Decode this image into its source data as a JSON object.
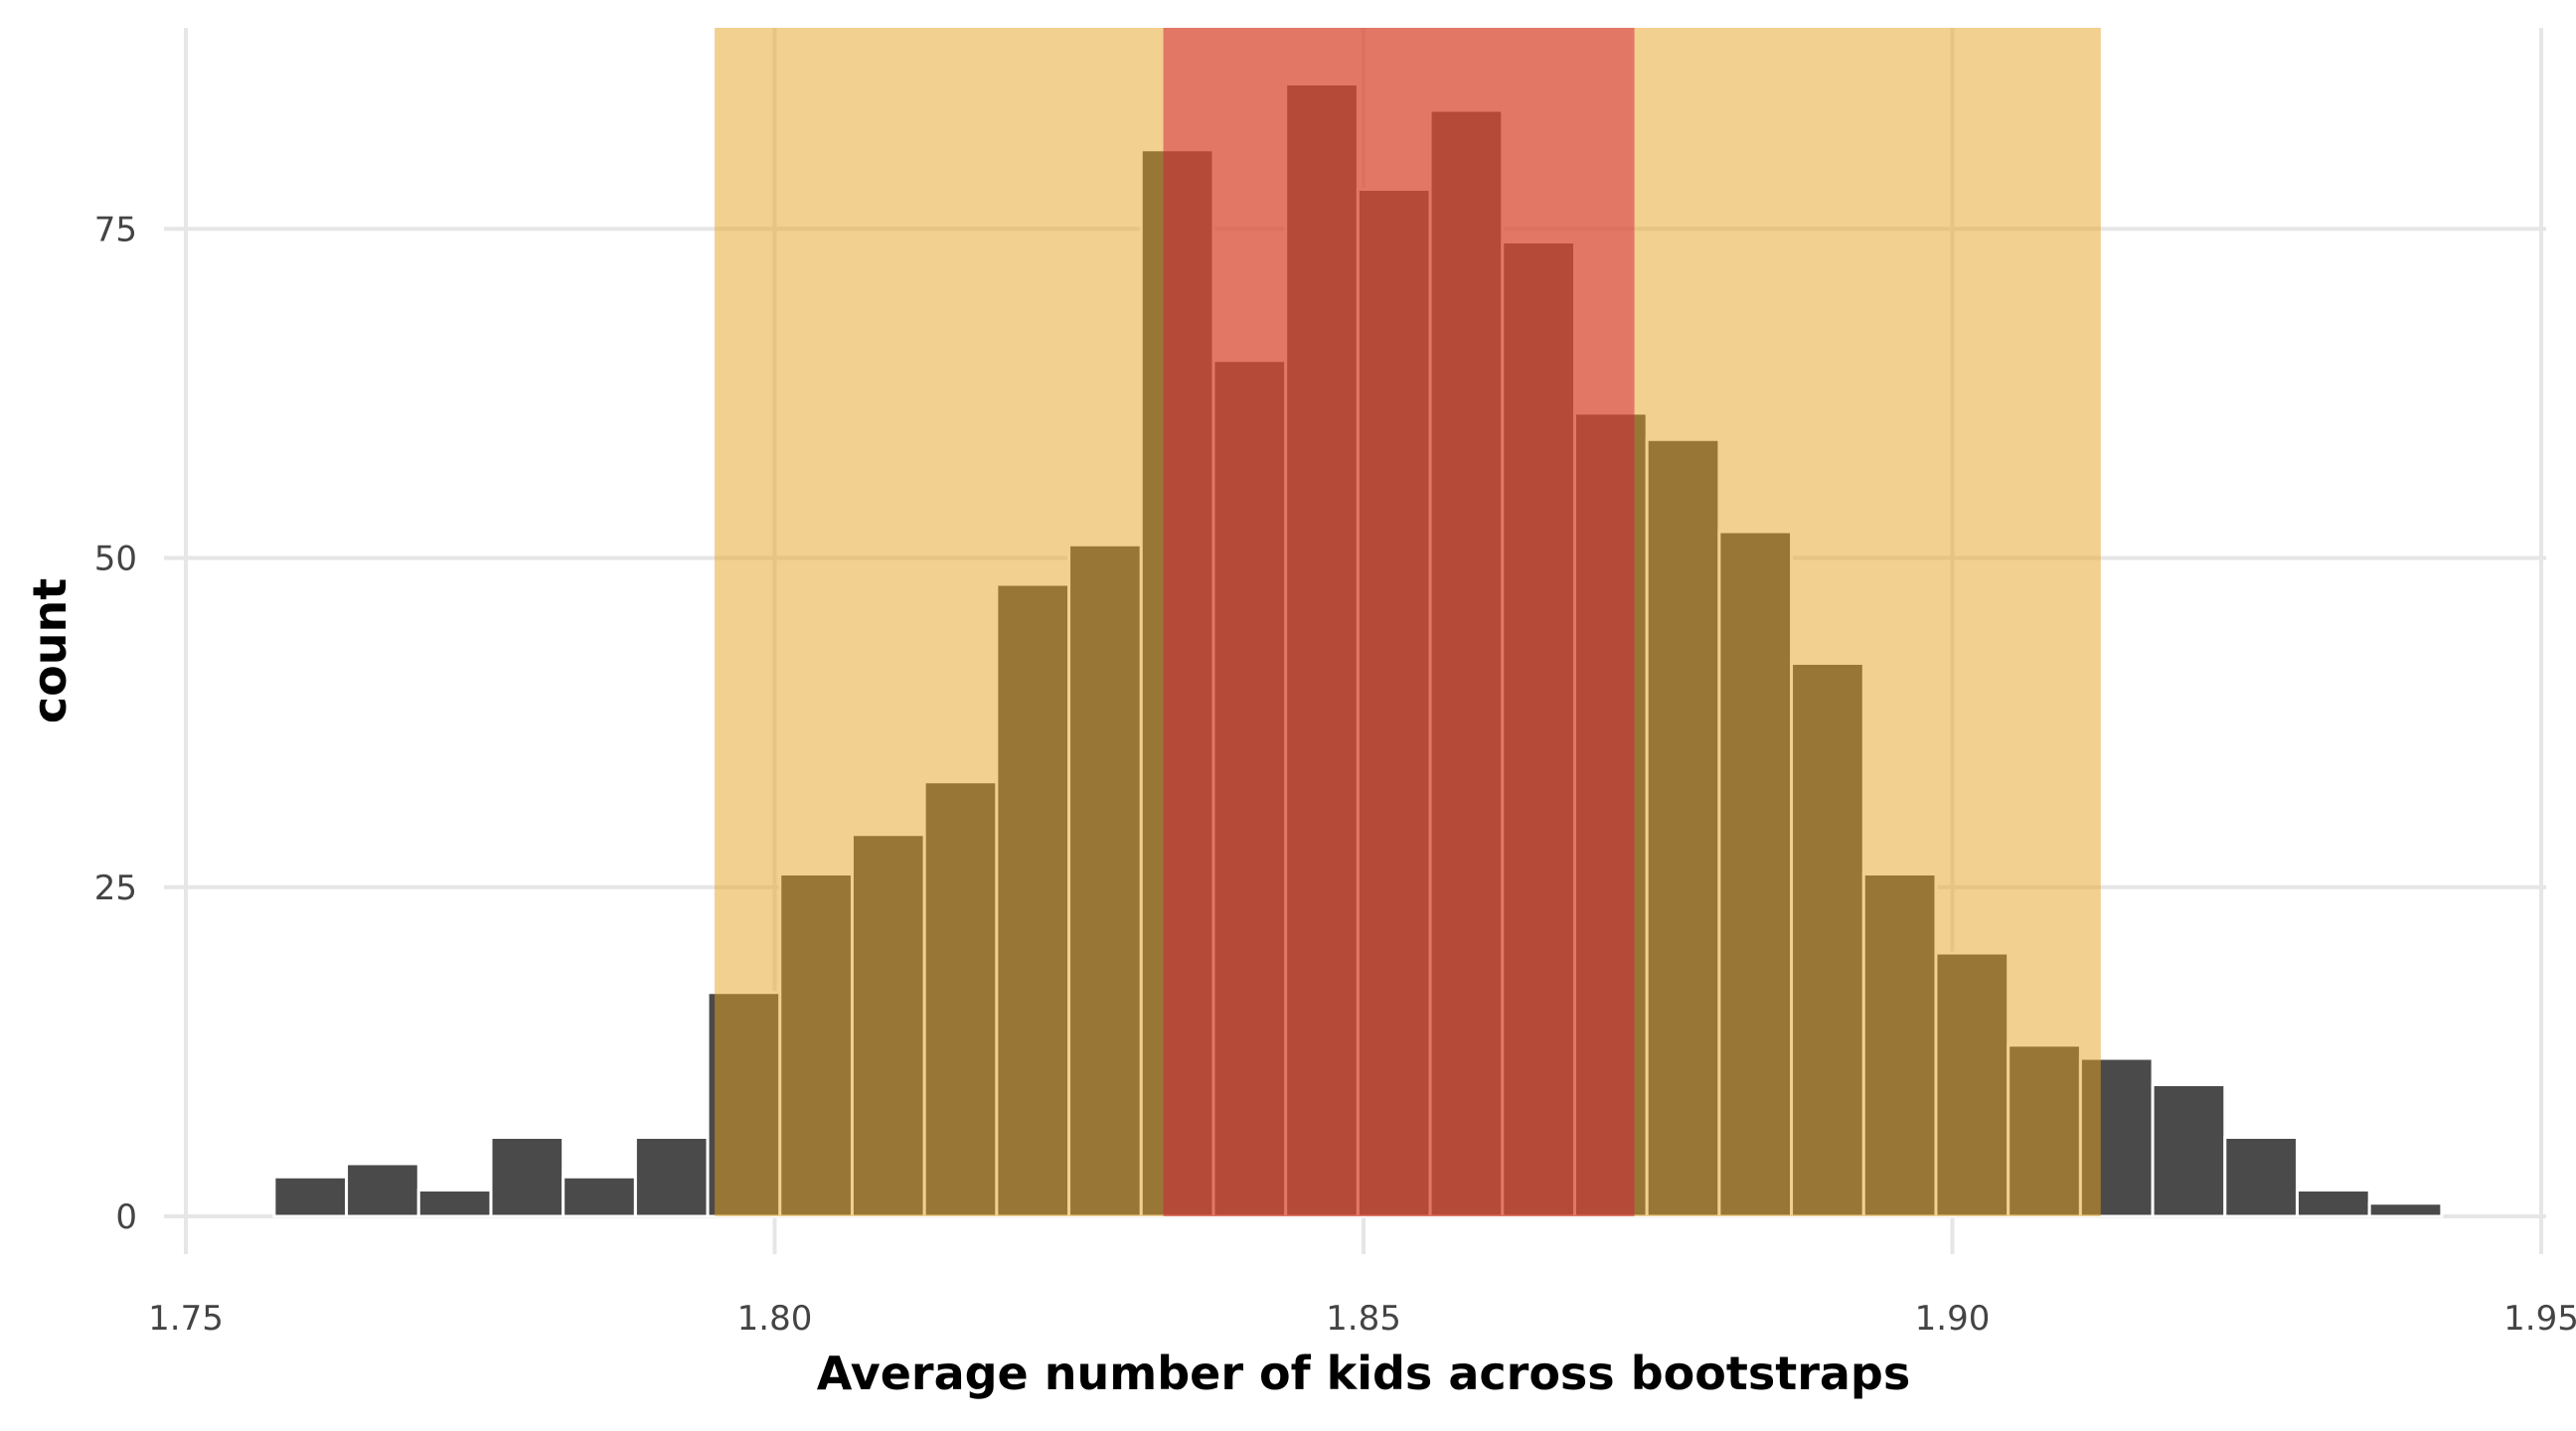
{
  "chart_data": {
    "type": "bar",
    "subtype": "histogram",
    "title": "",
    "xlabel": "Average number of kids across bootstraps",
    "ylabel": "count",
    "xlim": [
      1.75,
      1.95
    ],
    "ylim": [
      0,
      90
    ],
    "grid": true,
    "x_ticks": [
      1.75,
      1.8,
      1.85,
      1.9,
      1.95
    ],
    "x_tick_labels": [
      "1.75",
      "1.80",
      "1.85",
      "1.90",
      "1.95"
    ],
    "y_ticks": [
      0,
      25,
      50,
      75
    ],
    "y_tick_labels": [
      "0",
      "25",
      "50",
      "75"
    ],
    "bins": {
      "start": 1.7575,
      "width": 0.006135
    },
    "values": [
      3,
      4,
      2,
      6,
      3,
      6,
      17,
      26,
      29,
      33,
      48,
      51,
      81,
      65,
      86,
      78,
      84,
      74,
      61,
      59,
      52,
      42,
      26,
      20,
      13,
      12,
      10,
      6,
      2,
      1
    ],
    "bar_color": "#4a4a4a",
    "shaded_regions": [
      {
        "name": "outer-interval",
        "xmin": 1.7949,
        "xmax": 1.9126,
        "color": "#e5a11f",
        "opacity": 0.5
      },
      {
        "name": "inner-interval",
        "xmin": 1.833,
        "xmax": 1.873,
        "color": "#d21e3d",
        "opacity": 0.5
      }
    ]
  }
}
